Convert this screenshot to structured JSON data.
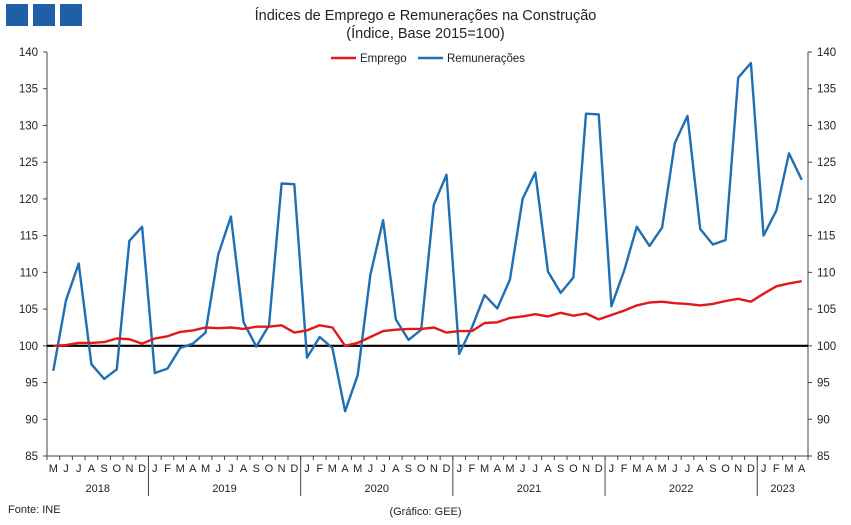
{
  "title": "Índices de Emprego e Remunerações na Construção",
  "subtitle": "(Índice, Base 2015=100)",
  "source": "Fonte: INE",
  "credit": "(Gráfico: GEE)",
  "colors": {
    "emprego": "#e0191b",
    "remuneracoes": "#1f6fb2",
    "baseline": "#000000",
    "logo": "#1f5fa8"
  },
  "chart_data": {
    "type": "line",
    "title": "Índices de Emprego e Remunerações na Construção",
    "subtitle": "(Índice, Base 2015=100)",
    "ylim": [
      85,
      140
    ],
    "yticks": [
      85,
      90,
      95,
      100,
      105,
      110,
      115,
      120,
      125,
      130,
      135,
      140
    ],
    "y_axis_both_sides": true,
    "reference_line": 100,
    "legend_position": "top-center",
    "month_labels": [
      "M",
      "J",
      "J",
      "A",
      "S",
      "O",
      "N",
      "D",
      "J",
      "F",
      "M",
      "A",
      "M",
      "J",
      "J",
      "A",
      "S",
      "O",
      "N",
      "D",
      "J",
      "F",
      "M",
      "A",
      "M",
      "J",
      "J",
      "A",
      "S",
      "O",
      "N",
      "D",
      "J",
      "F",
      "M",
      "A",
      "M",
      "J",
      "J",
      "A",
      "S",
      "O",
      "N",
      "D",
      "J",
      "F",
      "M",
      "A",
      "M",
      "J",
      "J",
      "A",
      "S",
      "O",
      "N",
      "D",
      "J",
      "F",
      "M",
      "A"
    ],
    "years": [
      {
        "label": "2018",
        "first": 0,
        "last": 7
      },
      {
        "label": "2019",
        "first": 8,
        "last": 19
      },
      {
        "label": "2020",
        "first": 20,
        "last": 31
      },
      {
        "label": "2021",
        "first": 32,
        "last": 43
      },
      {
        "label": "2022",
        "first": 44,
        "last": 55
      },
      {
        "label": "2023",
        "first": 56,
        "last": 59
      }
    ],
    "series": [
      {
        "name": "Emprego",
        "values": [
          100.0,
          100.1,
          100.4,
          100.4,
          100.5,
          101.0,
          100.9,
          100.3,
          101.0,
          101.3,
          101.9,
          102.1,
          102.5,
          102.4,
          102.5,
          102.3,
          102.6,
          102.6,
          102.8,
          101.8,
          102.1,
          102.8,
          102.5,
          100.0,
          100.4,
          101.2,
          102.0,
          102.2,
          102.3,
          102.3,
          102.5,
          101.8,
          102.0,
          102.0,
          103.1,
          103.2,
          103.8,
          104.0,
          104.3,
          104.0,
          104.5,
          104.1,
          104.4,
          103.6,
          104.2,
          104.8,
          105.5,
          105.9,
          106.0,
          105.8,
          105.7,
          105.5,
          105.7,
          106.1,
          106.4,
          106.0,
          107.1,
          108.1,
          108.5,
          108.8
        ]
      },
      {
        "name": "Remunerações",
        "values": [
          96.6,
          106.2,
          111.2,
          97.5,
          95.5,
          96.8,
          114.3,
          116.2,
          96.3,
          96.9,
          99.7,
          100.3,
          101.8,
          112.4,
          117.6,
          103.2,
          99.9,
          102.8,
          122.1,
          122.0,
          98.4,
          101.2,
          99.7,
          91.1,
          96.0,
          109.7,
          117.1,
          103.6,
          100.8,
          102.2,
          119.2,
          123.3,
          98.9,
          102.5,
          106.9,
          105.1,
          109.0,
          120.0,
          123.6,
          110.1,
          107.2,
          109.3,
          131.6,
          131.5,
          105.4,
          110.2,
          116.2,
          113.6,
          116.1,
          127.6,
          131.3,
          115.9,
          113.8,
          114.4,
          136.5,
          138.5,
          115.0,
          118.4,
          126.2,
          122.6
        ]
      }
    ]
  }
}
